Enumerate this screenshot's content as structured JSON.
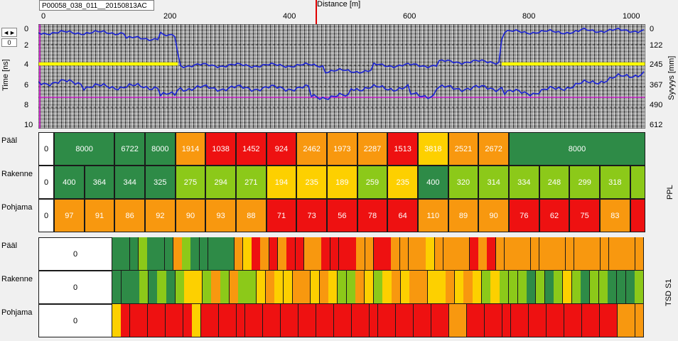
{
  "file_tag": "P00058_038_011__20150813AC",
  "distance_axis": {
    "title": "Distance [m]",
    "ticks": [
      "0",
      "200",
      "400",
      "600",
      "800",
      "1000"
    ]
  },
  "nav": {
    "arrows": "◄►",
    "counter": "0"
  },
  "radar": {
    "ylabel_left": "Time [ns]",
    "ylabel_right": "Syvyys [mm]",
    "time_ticks": [
      "0",
      "2",
      "4",
      "6",
      "8",
      "10"
    ],
    "depth_ticks": [
      "0",
      "122",
      "245",
      "367",
      "490",
      "612"
    ]
  },
  "colors": {
    "dark_green": "#2e8b47",
    "light_green": "#8cc919",
    "yellow": "#fdd000",
    "orange": "#f8980f",
    "red": "#ee1111",
    "trace_blue": "#1a22d6",
    "highlight_yellow": "#ffff00"
  },
  "ppl": {
    "side_label": "PPL",
    "rows": [
      {
        "label": "Pääl",
        "first": "0",
        "cells": [
          {
            "v": "8000",
            "c": "dg",
            "w": 2
          },
          {
            "v": "6722",
            "c": "dg",
            "w": 1
          },
          {
            "v": "8000",
            "c": "dg",
            "w": 1
          },
          {
            "v": "1914",
            "c": "or",
            "w": 1
          },
          {
            "v": "1038",
            "c": "rd",
            "w": 1
          },
          {
            "v": "1452",
            "c": "rd",
            "w": 1
          },
          {
            "v": "924",
            "c": "rd",
            "w": 1
          },
          {
            "v": "2462",
            "c": "or",
            "w": 1
          },
          {
            "v": "1973",
            "c": "or",
            "w": 1
          },
          {
            "v": "2287",
            "c": "or",
            "w": 1
          },
          {
            "v": "1513",
            "c": "rd",
            "w": 1
          },
          {
            "v": "3818",
            "c": "ye",
            "w": 1
          },
          {
            "v": "2521",
            "c": "or",
            "w": 1
          },
          {
            "v": "2672",
            "c": "or",
            "w": 1
          },
          {
            "v": "8000",
            "c": "dg",
            "w": 4.5
          }
        ]
      },
      {
        "label": "Rakenne",
        "first": "0",
        "cells": [
          {
            "v": "400",
            "c": "dg",
            "w": 1
          },
          {
            "v": "364",
            "c": "dg",
            "w": 1
          },
          {
            "v": "344",
            "c": "dg",
            "w": 1
          },
          {
            "v": "325",
            "c": "dg",
            "w": 1
          },
          {
            "v": "275",
            "c": "lg",
            "w": 1
          },
          {
            "v": "294",
            "c": "lg",
            "w": 1
          },
          {
            "v": "271",
            "c": "lg",
            "w": 1
          },
          {
            "v": "194",
            "c": "ye",
            "w": 1
          },
          {
            "v": "235",
            "c": "ye",
            "w": 1
          },
          {
            "v": "189",
            "c": "ye",
            "w": 1
          },
          {
            "v": "259",
            "c": "lg",
            "w": 1
          },
          {
            "v": "235",
            "c": "ye",
            "w": 1
          },
          {
            "v": "400",
            "c": "dg",
            "w": 1
          },
          {
            "v": "320",
            "c": "lg",
            "w": 1
          },
          {
            "v": "314",
            "c": "lg",
            "w": 1
          },
          {
            "v": "334",
            "c": "lg",
            "w": 1
          },
          {
            "v": "248",
            "c": "lg",
            "w": 1
          },
          {
            "v": "299",
            "c": "lg",
            "w": 1
          },
          {
            "v": "318",
            "c": "lg",
            "w": 1
          },
          {
            "v": "",
            "c": "lg",
            "w": 0.5
          }
        ]
      },
      {
        "label": "Pohjama",
        "first": "0",
        "cells": [
          {
            "v": "97",
            "c": "or",
            "w": 1
          },
          {
            "v": "91",
            "c": "or",
            "w": 1
          },
          {
            "v": "86",
            "c": "or",
            "w": 1
          },
          {
            "v": "92",
            "c": "or",
            "w": 1
          },
          {
            "v": "90",
            "c": "or",
            "w": 1
          },
          {
            "v": "93",
            "c": "or",
            "w": 1
          },
          {
            "v": "88",
            "c": "or",
            "w": 1
          },
          {
            "v": "71",
            "c": "rd",
            "w": 1
          },
          {
            "v": "73",
            "c": "rd",
            "w": 1
          },
          {
            "v": "56",
            "c": "rd",
            "w": 1
          },
          {
            "v": "78",
            "c": "rd",
            "w": 1
          },
          {
            "v": "64",
            "c": "rd",
            "w": 1
          },
          {
            "v": "110",
            "c": "or",
            "w": 1
          },
          {
            "v": "89",
            "c": "or",
            "w": 1
          },
          {
            "v": "90",
            "c": "or",
            "w": 1
          },
          {
            "v": "76",
            "c": "rd",
            "w": 1
          },
          {
            "v": "62",
            "c": "rd",
            "w": 1
          },
          {
            "v": "75",
            "c": "rd",
            "w": 1
          },
          {
            "v": "83",
            "c": "or",
            "w": 1
          },
          {
            "v": "",
            "c": "rd",
            "w": 0.5
          }
        ]
      }
    ]
  },
  "tsd": {
    "side_label": "TSD S1",
    "rows": [
      {
        "label": "Pääl",
        "first": "0"
      },
      {
        "label": "Rakenne",
        "first": "0"
      },
      {
        "label": "Pohjama",
        "first": "0"
      }
    ]
  }
}
